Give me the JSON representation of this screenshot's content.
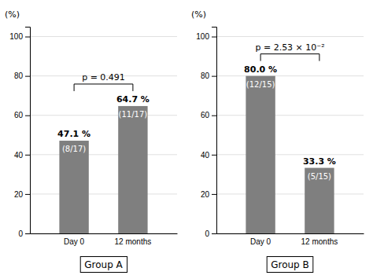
{
  "chart_data": [
    {
      "type": "bar",
      "xlabel": "Group A",
      "ylabel": "(%)",
      "categories": [
        "Day 0",
        "12 months"
      ],
      "values": [
        47.1,
        64.7
      ],
      "value_labels": [
        "47.1 %",
        "64.7 %"
      ],
      "data_labels": true,
      "color": "#7f7f7f",
      "ylim": [
        0,
        105
      ],
      "yticks": [
        0,
        20,
        40,
        60,
        80,
        100
      ],
      "grid": true,
      "annotations": [
        {
          "text": "(8/17)",
          "category": "Day 0"
        },
        {
          "text": "(11/17)",
          "category": "12 months"
        },
        {
          "text": "p = 0.491",
          "categories": [
            "Day 0",
            "12 months"
          ]
        }
      ]
    },
    {
      "type": "bar",
      "xlabel": "Group B",
      "ylabel": "(%)",
      "categories": [
        "Day 0",
        "12 months"
      ],
      "values": [
        80.0,
        33.3
      ],
      "value_labels": [
        "80.0 %",
        "33.3 %"
      ],
      "data_labels": true,
      "color": "#7f7f7f",
      "ylim": [
        0,
        105
      ],
      "yticks": [
        0,
        20,
        40,
        60,
        80,
        100
      ],
      "grid": true,
      "annotations": [
        {
          "text": "(12/15)",
          "category": "Day 0"
        },
        {
          "text": "(5/15)",
          "category": "12 months"
        },
        {
          "text": "p = 2.53 × 10⁻²",
          "categories": [
            "Day 0",
            "12 months"
          ]
        }
      ]
    }
  ]
}
